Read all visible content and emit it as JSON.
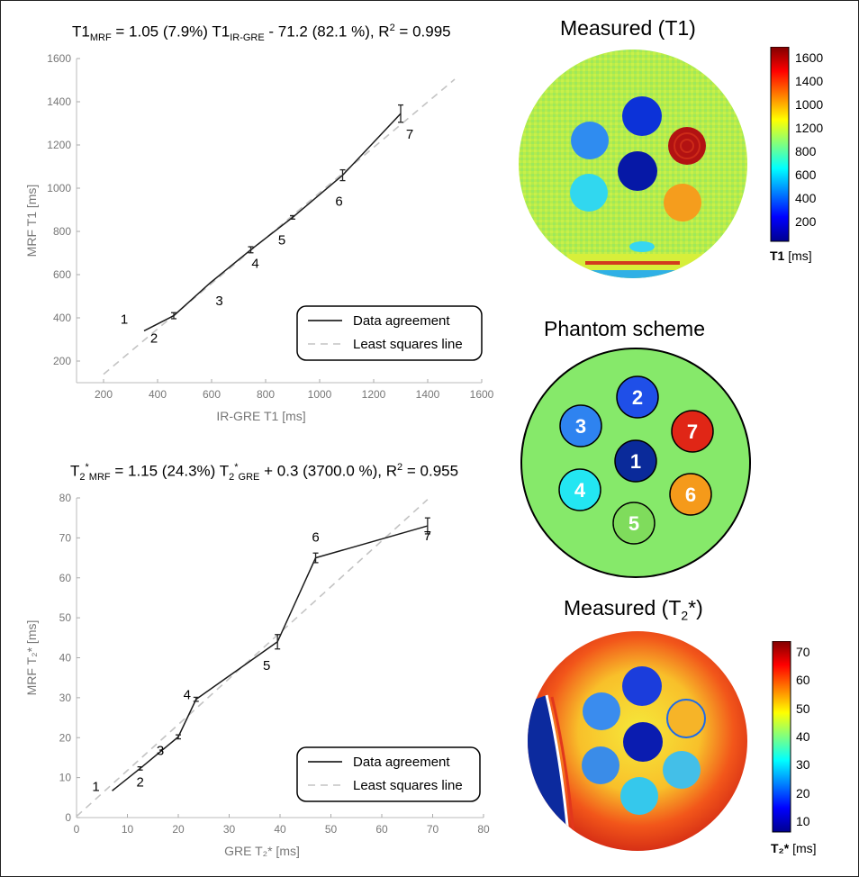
{
  "top_chart": {
    "eq_a": "T1",
    "eq_a_sub": "MRF",
    "eq_b": " = 1.05 (7.9%) T1",
    "eq_b_sub": "IR-GRE",
    "eq_c": " - 71.2 (82.1 %),  R",
    "eq_c_sup": "2",
    "eq_d": " = 0.995"
  },
  "bottom_chart": {
    "eq_a": "T",
    "eq_a_sub": "2",
    "eq_a_sup": "*",
    "eq_a_sub2": "MRF",
    "eq_b": " = 1.15 (24.3%) T",
    "eq_b_sub": "2",
    "eq_b_sup": "*",
    "eq_b_sub2": "GRE",
    "eq_c": " + 0.3 (3700.0 %),  R",
    "eq_c_sup": "2",
    "eq_d": " = 0.955"
  },
  "chart_data": [
    {
      "type": "line",
      "xlabel": "IR-GRE  T1 [ms]",
      "ylabel": "MRF  T1 [ms]",
      "xlim": [
        100,
        1600
      ],
      "ylim": [
        100,
        1600
      ],
      "xticks": [
        200,
        400,
        600,
        800,
        1000,
        1200,
        1400,
        1600
      ],
      "yticks": [
        200,
        400,
        600,
        800,
        1000,
        1200,
        1400,
        1600
      ],
      "grid": false,
      "legend_position": "bottom-right",
      "series": [
        {
          "name": "Data agreement",
          "style": "solid",
          "x": [
            350,
            460,
            595,
            745,
            900,
            1085,
            1300
          ],
          "y": [
            340,
            410,
            562,
            715,
            865,
            1060,
            1345
          ],
          "err": [
            0,
            14,
            0,
            14,
            8,
            25,
            40
          ],
          "point_labels": [
            "1",
            "2",
            "3",
            "4",
            "5",
            "6",
            "7"
          ]
        },
        {
          "name": "Least squares line",
          "style": "dashed",
          "x": [
            200,
            1500
          ],
          "y": [
            139,
            1504
          ]
        }
      ]
    },
    {
      "type": "line",
      "xlabel": "GRE  T₂* [ms]",
      "ylabel": "MRF  T₂* [ms]",
      "xlim": [
        0,
        80
      ],
      "ylim": [
        0,
        80
      ],
      "xticks": [
        0,
        10,
        20,
        30,
        40,
        50,
        60,
        70,
        80
      ],
      "yticks": [
        0,
        10,
        20,
        30,
        40,
        50,
        60,
        70,
        80
      ],
      "grid": false,
      "legend_position": "bottom-right",
      "series": [
        {
          "name": "Data agreement",
          "style": "solid",
          "x": [
            7,
            12.5,
            20,
            23.5,
            39.5,
            47,
            69
          ],
          "y": [
            6.7,
            12.3,
            20.2,
            29.6,
            44,
            65,
            73
          ],
          "err": [
            0,
            0.4,
            0.5,
            0.5,
            1.8,
            1.2,
            2
          ],
          "point_labels": [
            "1",
            "2",
            "3",
            "4",
            "5",
            "6",
            "7"
          ]
        },
        {
          "name": "Least squares line",
          "style": "dashed",
          "x": [
            0,
            69
          ],
          "y": [
            0.3,
            79.6
          ]
        }
      ]
    }
  ],
  "panels": {
    "t1_title": "Measured (T1)",
    "scheme_title": "Phantom scheme",
    "t2_title_a": "Measured (T",
    "t2_title_sub": "2",
    "t2_title_b": "*)",
    "t1_colorbar": {
      "ticks": [
        "1600",
        "1400",
        "1000",
        "1200",
        "800",
        "600",
        "400",
        "200"
      ],
      "label_bold": "T1",
      "label_rest": " [ms]"
    },
    "t2_colorbar": {
      "ticks": [
        "70",
        "60",
        "50",
        "40",
        "30",
        "20",
        "10"
      ],
      "label_bold": "T₂*",
      "label_rest": " [ms]"
    },
    "scheme_vials": [
      {
        "label": "2",
        "color": "#1f4fe8"
      },
      {
        "label": "3",
        "color": "#2e83f0"
      },
      {
        "label": "7",
        "color": "#e02616"
      },
      {
        "label": "1",
        "color": "#0a2a9a"
      },
      {
        "label": "4",
        "color": "#23e6f2"
      },
      {
        "label": "6",
        "color": "#f59a1a"
      },
      {
        "label": "5",
        "color": "#7fdc5c"
      }
    ],
    "scheme_background": "#86e96a"
  }
}
